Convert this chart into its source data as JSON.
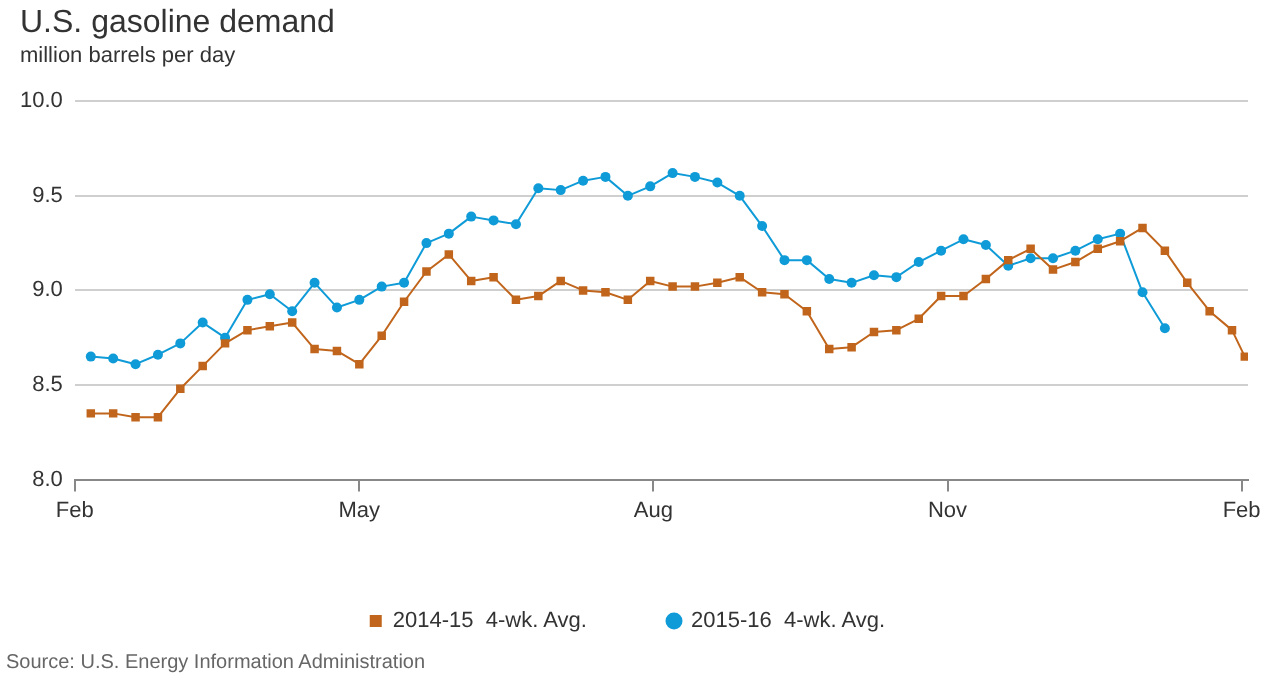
{
  "chart_data": {
    "type": "line",
    "title": "U.S. gasoline demand",
    "subtitle": "million barrels per day",
    "annotations": [
      "Source: U.S. Energy Information Administration"
    ],
    "xlim": [
      "2014-02-01",
      "2015-02-03"
    ],
    "xticks": [
      {
        "value": "2014-02-01",
        "label": "Feb"
      },
      {
        "value": "2014-05-01",
        "label": "May"
      },
      {
        "value": "2014-08-01",
        "label": "Aug"
      },
      {
        "value": "2014-11-01",
        "label": "Nov"
      },
      {
        "value": "2015-02-01",
        "label": "Feb"
      }
    ],
    "ylim": [
      8,
      10
    ],
    "yticks": [
      {
        "value": 8,
        "label": "8.0"
      },
      {
        "value": 8.5,
        "label": "8.5"
      },
      {
        "value": 9,
        "label": "9.0"
      },
      {
        "value": 9.5,
        "label": "9.5"
      },
      {
        "value": 10,
        "label": "10.0"
      }
    ],
    "grid": "y",
    "legend": "bottom",
    "series": [
      {
        "name": "2014-15  4-wk. Avg.",
        "color": "#c0651b",
        "marker": "square",
        "x": [
          "2014-02-06",
          "2014-02-13",
          "2014-02-20",
          "2014-02-27",
          "2014-03-06",
          "2014-03-13",
          "2014-03-20",
          "2014-03-27",
          "2014-04-03",
          "2014-04-10",
          "2014-04-17",
          "2014-04-24",
          "2014-05-01",
          "2014-05-08",
          "2014-05-15",
          "2014-05-22",
          "2014-05-29",
          "2014-06-05",
          "2014-06-12",
          "2014-06-19",
          "2014-06-26",
          "2014-07-03",
          "2014-07-10",
          "2014-07-17",
          "2014-07-24",
          "2014-07-31",
          "2014-08-07",
          "2014-08-14",
          "2014-08-21",
          "2014-08-28",
          "2014-09-04",
          "2014-09-11",
          "2014-09-18",
          "2014-09-25",
          "2014-10-02",
          "2014-10-09",
          "2014-10-16",
          "2014-10-23",
          "2014-10-30",
          "2014-11-06",
          "2014-11-13",
          "2014-11-20",
          "2014-11-27",
          "2014-12-04",
          "2014-12-11",
          "2014-12-18",
          "2014-12-25",
          "2015-01-01",
          "2015-01-08",
          "2015-01-15",
          "2015-01-22",
          "2015-01-29",
          "2015-02-02"
        ],
        "values": [
          8.35,
          8.35,
          8.33,
          8.33,
          8.48,
          8.6,
          8.72,
          8.79,
          8.81,
          8.83,
          8.69,
          8.68,
          8.61,
          8.76,
          8.94,
          9.1,
          9.19,
          9.05,
          9.07,
          8.95,
          8.97,
          9.05,
          9.0,
          8.99,
          8.95,
          9.05,
          9.02,
          9.02,
          9.04,
          9.07,
          8.99,
          8.98,
          8.89,
          8.69,
          8.7,
          8.78,
          8.79,
          8.85,
          8.97,
          8.97,
          9.06,
          9.16,
          9.22,
          9.11,
          9.15,
          9.22,
          9.26,
          9.33,
          9.21,
          9.04,
          8.89,
          8.79,
          8.65
        ]
      },
      {
        "name": "2015-16  4-wk. Avg.",
        "color": "#0f9bd7",
        "marker": "circle",
        "x": [
          "2014-02-06",
          "2014-02-13",
          "2014-02-20",
          "2014-02-27",
          "2014-03-06",
          "2014-03-13",
          "2014-03-20",
          "2014-03-27",
          "2014-04-03",
          "2014-04-10",
          "2014-04-17",
          "2014-04-24",
          "2014-05-01",
          "2014-05-08",
          "2014-05-15",
          "2014-05-22",
          "2014-05-29",
          "2014-06-05",
          "2014-06-12",
          "2014-06-19",
          "2014-06-26",
          "2014-07-03",
          "2014-07-10",
          "2014-07-17",
          "2014-07-24",
          "2014-07-31",
          "2014-08-07",
          "2014-08-14",
          "2014-08-21",
          "2014-08-28",
          "2014-09-04",
          "2014-09-11",
          "2014-09-18",
          "2014-09-25",
          "2014-10-02",
          "2014-10-09",
          "2014-10-16",
          "2014-10-23",
          "2014-10-30",
          "2014-11-06",
          "2014-11-13",
          "2014-11-20",
          "2014-11-27",
          "2014-12-04",
          "2014-12-11",
          "2014-12-18",
          "2014-12-25",
          "2015-01-01",
          "2015-01-08"
        ],
        "values": [
          8.65,
          8.64,
          8.61,
          8.66,
          8.72,
          8.83,
          8.75,
          8.95,
          8.98,
          8.89,
          9.04,
          8.91,
          8.95,
          9.02,
          9.04,
          9.25,
          9.3,
          9.39,
          9.37,
          9.35,
          9.54,
          9.53,
          9.58,
          9.6,
          9.5,
          9.55,
          9.62,
          9.6,
          9.57,
          9.5,
          9.34,
          9.16,
          9.16,
          9.06,
          9.04,
          9.08,
          9.07,
          9.15,
          9.21,
          9.27,
          9.24,
          9.13,
          9.17,
          9.17,
          9.21,
          9.27,
          9.3,
          8.99,
          8.8
        ]
      }
    ]
  }
}
